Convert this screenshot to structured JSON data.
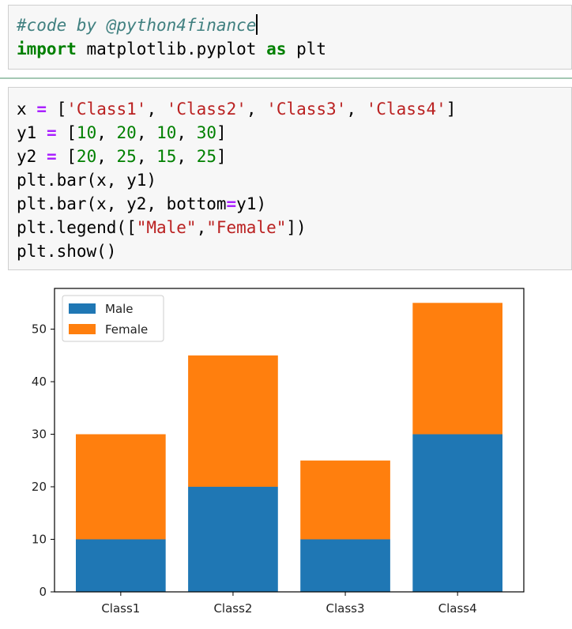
{
  "cell1": {
    "comment": "#code by @python4finance",
    "import_kw": "import",
    "module": "matplotlib.pyplot",
    "as_kw": "as",
    "alias": "plt"
  },
  "cell2": {
    "line1": {
      "var": "x",
      "op": "=",
      "open": "[",
      "s1": "'Class1'",
      "s2": "'Class2'",
      "s3": "'Class3'",
      "s4": "'Class4'",
      "sep": ", ",
      "close": "]"
    },
    "line2": {
      "var": "y1",
      "op": "=",
      "open": "[",
      "n1": "10",
      "n2": "20",
      "n3": "10",
      "n4": "30",
      "sep": ", ",
      "close": "]"
    },
    "line3": {
      "var": "y2",
      "op": "=",
      "open": "[",
      "n1": "20",
      "n2": "25",
      "n3": "15",
      "n4": "25",
      "sep": ", ",
      "close": "]"
    },
    "line4": "plt.bar(x, y1)",
    "line5": {
      "pre": "plt.bar(x, y2, bottom",
      "op": "=",
      "post": "y1)"
    },
    "line6": {
      "pre": "plt.legend([",
      "s1": "\"Male\"",
      "comma": ",",
      "s2": "\"Female\"",
      "post": "])"
    },
    "line7": "plt.show()"
  },
  "chart_data": {
    "type": "bar",
    "stacked": true,
    "categories": [
      "Class1",
      "Class2",
      "Class3",
      "Class4"
    ],
    "series": [
      {
        "name": "Male",
        "values": [
          10,
          20,
          10,
          30
        ],
        "color": "#1f77b4"
      },
      {
        "name": "Female",
        "values": [
          20,
          25,
          15,
          25
        ],
        "color": "#ff7f0e"
      }
    ],
    "yticks": [
      "0",
      "10",
      "20",
      "30",
      "40",
      "50"
    ],
    "ylim": [
      0,
      57.75
    ],
    "legend_position": "upper-left",
    "grid": false
  }
}
